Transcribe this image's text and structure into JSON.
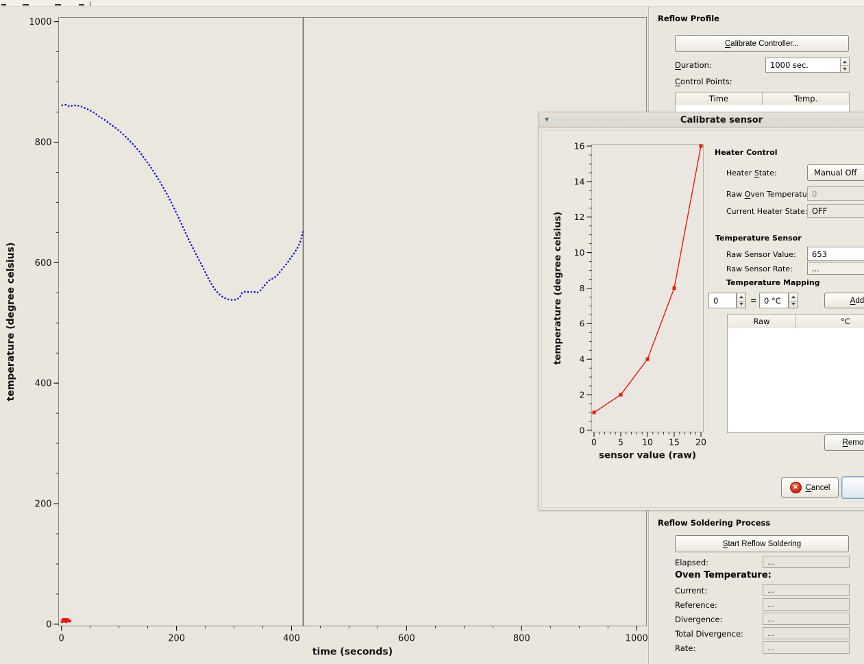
{
  "colors": {
    "window_bg": "#e9e6dd",
    "dialog_bg": "#ebe8e0",
    "curve_blue": "#0000dd",
    "curve_red": "#f21510",
    "cursor_line": "#1a1a1a"
  },
  "reflow_profile": {
    "header": "Reflow Profile",
    "calibrate_button": {
      "m": "C",
      "post": "alibrate Controller..."
    },
    "duration_label": {
      "m": "D",
      "post": "uration:"
    },
    "duration_value": "1000 sec.",
    "control_points_label": {
      "m": "C",
      "post": "ontrol Points:"
    },
    "table_columns": [
      "Time",
      "Temp."
    ],
    "table_rows": []
  },
  "reflow_process": {
    "header": "Reflow Soldering Process",
    "start_button": {
      "m": "S",
      "post": "tart Reflow Soldering"
    },
    "elapsed_label": "Elapsed:",
    "elapsed_value": "...",
    "oven_temp_header": "Oven Temperature:",
    "rows": [
      {
        "label": "Current:",
        "value": "..."
      },
      {
        "label": "Reference:",
        "value": "..."
      },
      {
        "label": "Divergence:",
        "value": "..."
      },
      {
        "label": "Total Divergence:",
        "value": "..."
      },
      {
        "label": "Rate:",
        "value": "..."
      }
    ]
  },
  "dialog": {
    "title": "Calibrate sensor",
    "heater_control": {
      "header": "Heater Control",
      "heater_state_label": {
        "pre": "Heater ",
        "m": "S",
        "post": "tate:"
      },
      "heater_state_value": "Manual Off",
      "raw_oven_temp_label": {
        "pre": "Raw ",
        "m": "O",
        "post": "ven Temperature:"
      },
      "raw_oven_temp_value": "0",
      "current_heater_state_label": "Current Heater State:",
      "current_heater_state_value": "OFF"
    },
    "temperature_sensor": {
      "header": "Temperature Sensor",
      "raw_sensor_value_label": "Raw Sensor Value:",
      "raw_sensor_value": "653",
      "raw_sensor_rate_label": "Raw Sensor Rate:",
      "raw_sensor_rate": "...",
      "mapping_header": "Temperature Mapping",
      "mapping_raw_value": "0",
      "mapping_equals": "=",
      "mapping_celsius_value": "0 °C",
      "add_button": {
        "m": "A",
        "post": "dd"
      },
      "table_columns": [
        "Raw",
        "°C"
      ],
      "table_rows": [],
      "remove_button": {
        "m": "R",
        "post": "emove"
      }
    },
    "cancel_button": {
      "m": "C",
      "post": "ancel"
    }
  },
  "chart_data": [
    {
      "id": "oven-profile",
      "type": "line",
      "title": "",
      "xlabel": "time (seconds)",
      "ylabel": "temperature (degree celsius)",
      "xlim": [
        -5,
        1017
      ],
      "ylim": [
        -3,
        1007
      ],
      "xticks": {
        "major": 200,
        "minor": 50
      },
      "yticks": {
        "major": 200,
        "minor": 50
      },
      "grid": false,
      "cursor_x": 420,
      "series": [
        {
          "name": "raw-sensor-curve",
          "color": "#0000dd",
          "style": "dotted",
          "points": [
            [
              0,
              861
            ],
            [
              8,
              862
            ],
            [
              14,
              859
            ],
            [
              20,
              861
            ],
            [
              27,
              861
            ],
            [
              35,
              859
            ],
            [
              45,
              855
            ],
            [
              55,
              850
            ],
            [
              65,
              843
            ],
            [
              75,
              837
            ],
            [
              85,
              830
            ],
            [
              95,
              823
            ],
            [
              105,
              815
            ],
            [
              115,
              806
            ],
            [
              125,
              796
            ],
            [
              135,
              785
            ],
            [
              145,
              772
            ],
            [
              155,
              759
            ],
            [
              165,
              744
            ],
            [
              175,
              728
            ],
            [
              185,
              711
            ],
            [
              195,
              692
            ],
            [
              205,
              672
            ],
            [
              215,
              651
            ],
            [
              225,
              631
            ],
            [
              235,
              612
            ],
            [
              245,
              594
            ],
            [
              253,
              578
            ],
            [
              261,
              564
            ],
            [
              268,
              554
            ],
            [
              275,
              547
            ],
            [
              282,
              542
            ],
            [
              290,
              539
            ],
            [
              298,
              538
            ],
            [
              305,
              539
            ],
            [
              310,
              543
            ],
            [
              314,
              550
            ],
            [
              320,
              552
            ],
            [
              327,
              551
            ],
            [
              334,
              552
            ],
            [
              340,
              550
            ],
            [
              346,
              554
            ],
            [
              352,
              561
            ],
            [
              358,
              568
            ],
            [
              363,
              572
            ],
            [
              368,
              574
            ],
            [
              374,
              578
            ],
            [
              380,
              585
            ],
            [
              386,
              592
            ],
            [
              392,
              599
            ],
            [
              398,
              607
            ],
            [
              404,
              615
            ],
            [
              410,
              624
            ],
            [
              415,
              634
            ],
            [
              418,
              645
            ],
            [
              420,
              652
            ]
          ]
        },
        {
          "name": "mapped-temperature-points",
          "color": "#f21510",
          "style": "markers",
          "points": [
            [
              1,
              4
            ],
            [
              2,
              6
            ],
            [
              3,
              8
            ],
            [
              4,
              7
            ],
            [
              5,
              5
            ],
            [
              6,
              8
            ],
            [
              7,
              6
            ],
            [
              8,
              4
            ],
            [
              9,
              7
            ],
            [
              10,
              8
            ],
            [
              11,
              6
            ],
            [
              12,
              5
            ],
            [
              13,
              6
            ],
            [
              15,
              5
            ]
          ]
        }
      ]
    },
    {
      "id": "sensor-calibration",
      "type": "line",
      "title": "",
      "xlabel": "sensor value (raw)",
      "ylabel": "temperature (degree celsius)",
      "xlim": [
        -0.45,
        20.45
      ],
      "ylim": [
        -0.1,
        16.1
      ],
      "xticks": {
        "major": 5,
        "minor": 1
      },
      "yticks": {
        "major": 2,
        "minor": 0.5
      },
      "grid": false,
      "series": [
        {
          "name": "calibration-curve",
          "color": "#f21510",
          "style": "line-markers",
          "points": [
            [
              0,
              1
            ],
            [
              5,
              2
            ],
            [
              10,
              4
            ],
            [
              15,
              8
            ],
            [
              20,
              16
            ]
          ]
        }
      ]
    }
  ]
}
